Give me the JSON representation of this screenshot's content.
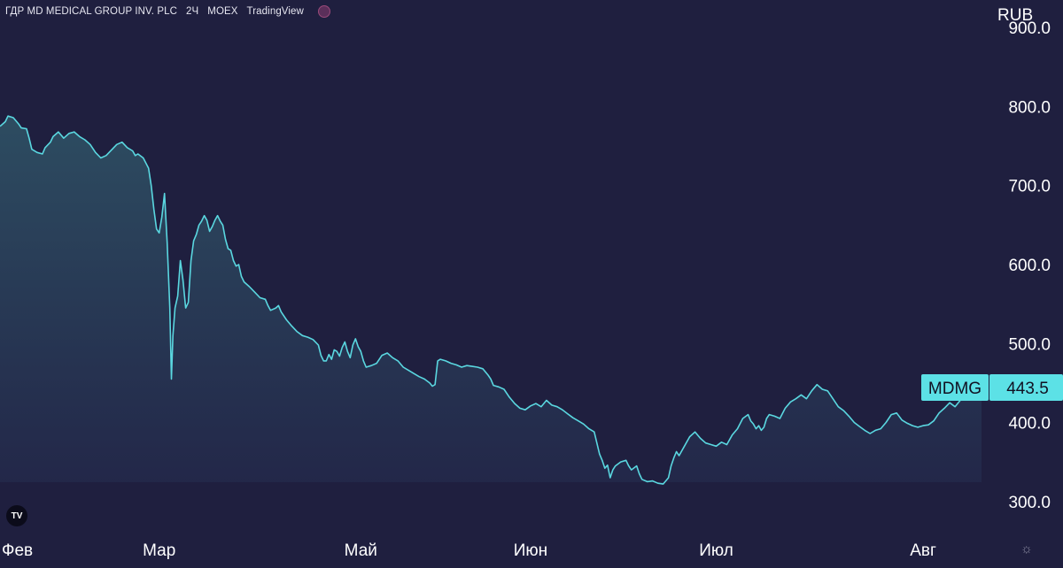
{
  "header": {
    "symbol_name": "ГДР MD MEDICAL GROUP INV. PLC",
    "interval": "2Ч",
    "exchange": "MOEX",
    "source": "TradingView"
  },
  "logo_text": "TV",
  "colors": {
    "background": "#1f1f3f",
    "line": "#5ad7e0",
    "label_bg": "#5ce1e6",
    "label_text": "#111122"
  },
  "chart_data": {
    "type": "area",
    "currency": "RUB",
    "ylim": [
      265,
      935
    ],
    "yticks": [
      300,
      400,
      500,
      600,
      700,
      800,
      900
    ],
    "ytick_labels": [
      "300.0",
      "400.0",
      "500.0",
      "600.0",
      "700.0",
      "800.0",
      "900.0"
    ],
    "xlim": [
      0,
      185
    ],
    "xticks": [
      {
        "label": "Фев",
        "x": 0
      },
      {
        "label": "Мар",
        "x": 30
      },
      {
        "label": "Май",
        "x": 68
      },
      {
        "label": "Июн",
        "x": 100
      },
      {
        "label": "Июл",
        "x": 135
      },
      {
        "label": "Авг",
        "x": 174
      }
    ],
    "grid": false,
    "last_value_label": {
      "ticker": "MDMG",
      "value": "443.5"
    },
    "series": [
      {
        "values": [
          [
            0,
            775
          ],
          [
            1,
            781
          ],
          [
            1.5,
            788
          ],
          [
            2.5,
            786
          ],
          [
            3.5,
            778
          ],
          [
            4,
            773
          ],
          [
            5,
            772
          ],
          [
            5.5,
            760
          ],
          [
            6,
            746
          ],
          [
            7,
            742
          ],
          [
            8,
            740
          ],
          [
            8.5,
            748
          ],
          [
            9.5,
            755
          ],
          [
            10,
            762
          ],
          [
            11,
            768
          ],
          [
            12,
            760
          ],
          [
            13,
            766
          ],
          [
            14,
            768
          ],
          [
            15,
            762
          ],
          [
            16,
            758
          ],
          [
            17,
            752
          ],
          [
            18,
            742
          ],
          [
            19,
            735
          ],
          [
            20,
            738
          ],
          [
            21,
            745
          ],
          [
            22,
            752
          ],
          [
            23,
            755
          ],
          [
            24,
            748
          ],
          [
            25,
            744
          ],
          [
            25.5,
            738
          ],
          [
            26,
            740
          ],
          [
            27,
            735
          ],
          [
            28,
            722
          ],
          [
            28.5,
            700
          ],
          [
            29,
            670
          ],
          [
            29.5,
            645
          ],
          [
            30,
            640
          ],
          [
            30.5,
            660
          ],
          [
            31,
            690
          ],
          [
            31.5,
            628
          ],
          [
            32,
            545
          ],
          [
            32.3,
            455
          ],
          [
            32.6,
            510
          ],
          [
            33,
            545
          ],
          [
            33.5,
            560
          ],
          [
            34,
            605
          ],
          [
            34.5,
            580
          ],
          [
            35,
            545
          ],
          [
            35.5,
            552
          ],
          [
            36,
            605
          ],
          [
            36.5,
            630
          ],
          [
            37,
            638
          ],
          [
            37.5,
            650
          ],
          [
            38,
            655
          ],
          [
            38.5,
            662
          ],
          [
            39,
            656
          ],
          [
            39.5,
            642
          ],
          [
            40,
            648
          ],
          [
            40.5,
            656
          ],
          [
            41,
            662
          ],
          [
            41.5,
            655
          ],
          [
            42,
            650
          ],
          [
            42.5,
            632
          ],
          [
            43,
            620
          ],
          [
            43.5,
            618
          ],
          [
            44,
            605
          ],
          [
            44.5,
            598
          ],
          [
            45,
            600
          ],
          [
            45.5,
            585
          ],
          [
            46,
            578
          ],
          [
            47,
            572
          ],
          [
            48,
            565
          ],
          [
            49,
            558
          ],
          [
            50,
            556
          ],
          [
            50.5,
            548
          ],
          [
            51,
            542
          ],
          [
            52,
            545
          ],
          [
            52.5,
            548
          ],
          [
            53,
            540
          ],
          [
            54,
            530
          ],
          [
            55,
            522
          ],
          [
            56,
            515
          ],
          [
            57,
            510
          ],
          [
            58,
            508
          ],
          [
            59,
            505
          ],
          [
            60,
            498
          ],
          [
            60.5,
            485
          ],
          [
            61,
            478
          ],
          [
            61.5,
            478
          ],
          [
            62,
            486
          ],
          [
            62.5,
            480
          ],
          [
            63,
            492
          ],
          [
            63.5,
            490
          ],
          [
            64,
            484
          ],
          [
            64.5,
            495
          ],
          [
            65,
            502
          ],
          [
            65.5,
            490
          ],
          [
            66,
            482
          ],
          [
            66.5,
            498
          ],
          [
            67,
            506
          ],
          [
            67.5,
            496
          ],
          [
            68,
            490
          ],
          [
            68.5,
            478
          ],
          [
            69,
            470
          ],
          [
            70,
            472
          ],
          [
            71,
            475
          ],
          [
            72,
            485
          ],
          [
            73,
            488
          ],
          [
            74,
            482
          ],
          [
            75,
            478
          ],
          [
            76,
            470
          ],
          [
            77,
            466
          ],
          [
            78,
            462
          ],
          [
            79,
            458
          ],
          [
            80,
            455
          ],
          [
            81,
            450
          ],
          [
            81.5,
            446
          ],
          [
            82,
            448
          ],
          [
            82.5,
            478
          ],
          [
            83,
            480
          ],
          [
            84,
            478
          ],
          [
            85,
            475
          ],
          [
            86,
            473
          ],
          [
            87,
            470
          ],
          [
            88,
            472
          ],
          [
            89,
            471
          ],
          [
            90,
            470
          ],
          [
            91,
            468
          ],
          [
            92,
            460
          ],
          [
            92.5,
            455
          ],
          [
            93,
            447
          ],
          [
            94,
            445
          ],
          [
            95,
            442
          ],
          [
            96,
            432
          ],
          [
            97,
            424
          ],
          [
            98,
            418
          ],
          [
            99,
            416
          ],
          [
            100,
            421
          ],
          [
            101,
            424
          ],
          [
            102,
            420
          ],
          [
            103,
            428
          ],
          [
            104,
            422
          ],
          [
            105,
            420
          ],
          [
            106,
            416
          ],
          [
            107,
            411
          ],
          [
            108,
            406
          ],
          [
            109,
            402
          ],
          [
            110,
            398
          ],
          [
            111,
            392
          ],
          [
            112,
            388
          ],
          [
            112.5,
            374
          ],
          [
            113,
            360
          ],
          [
            113.5,
            352
          ],
          [
            114,
            342
          ],
          [
            114.5,
            346
          ],
          [
            115,
            330
          ],
          [
            115.5,
            340
          ],
          [
            116,
            345
          ],
          [
            117,
            350
          ],
          [
            118,
            352
          ],
          [
            118.5,
            345
          ],
          [
            119,
            340
          ],
          [
            120,
            345
          ],
          [
            120.5,
            335
          ],
          [
            121,
            328
          ],
          [
            122,
            325
          ],
          [
            123,
            326
          ],
          [
            124,
            323
          ],
          [
            125,
            322
          ],
          [
            126,
            330
          ],
          [
            126.5,
            345
          ],
          [
            127,
            355
          ],
          [
            127.5,
            363
          ],
          [
            128,
            358
          ],
          [
            129,
            370
          ],
          [
            130,
            382
          ],
          [
            131,
            388
          ],
          [
            132,
            380
          ],
          [
            133,
            374
          ],
          [
            134,
            372
          ],
          [
            135,
            370
          ],
          [
            136,
            375
          ],
          [
            137,
            372
          ],
          [
            138,
            384
          ],
          [
            139,
            392
          ],
          [
            140,
            405
          ],
          [
            141,
            410
          ],
          [
            141.5,
            402
          ],
          [
            142,
            398
          ],
          [
            142.5,
            392
          ],
          [
            143,
            396
          ],
          [
            143.5,
            390
          ],
          [
            144,
            394
          ],
          [
            144.5,
            405
          ],
          [
            145,
            410
          ],
          [
            146,
            408
          ],
          [
            147,
            405
          ],
          [
            148,
            418
          ],
          [
            149,
            426
          ],
          [
            150,
            430
          ],
          [
            151,
            435
          ],
          [
            152,
            430
          ],
          [
            153,
            440
          ],
          [
            154,
            448
          ],
          [
            155,
            442
          ],
          [
            156,
            440
          ],
          [
            157,
            430
          ],
          [
            158,
            420
          ],
          [
            159,
            415
          ],
          [
            160,
            408
          ],
          [
            161,
            400
          ],
          [
            162,
            395
          ],
          [
            163,
            390
          ],
          [
            164,
            386
          ],
          [
            165,
            390
          ],
          [
            166,
            392
          ],
          [
            167,
            400
          ],
          [
            168,
            410
          ],
          [
            169,
            412
          ],
          [
            170,
            403
          ],
          [
            171,
            399
          ],
          [
            172,
            396
          ],
          [
            173,
            394
          ],
          [
            174,
            396
          ],
          [
            175,
            397
          ],
          [
            176,
            402
          ],
          [
            177,
            412
          ],
          [
            178,
            418
          ],
          [
            179,
            425
          ],
          [
            180,
            420
          ],
          [
            181,
            428
          ],
          [
            182,
            432
          ],
          [
            183,
            430
          ],
          [
            184,
            436
          ],
          [
            185,
            440
          ]
        ]
      }
    ]
  }
}
